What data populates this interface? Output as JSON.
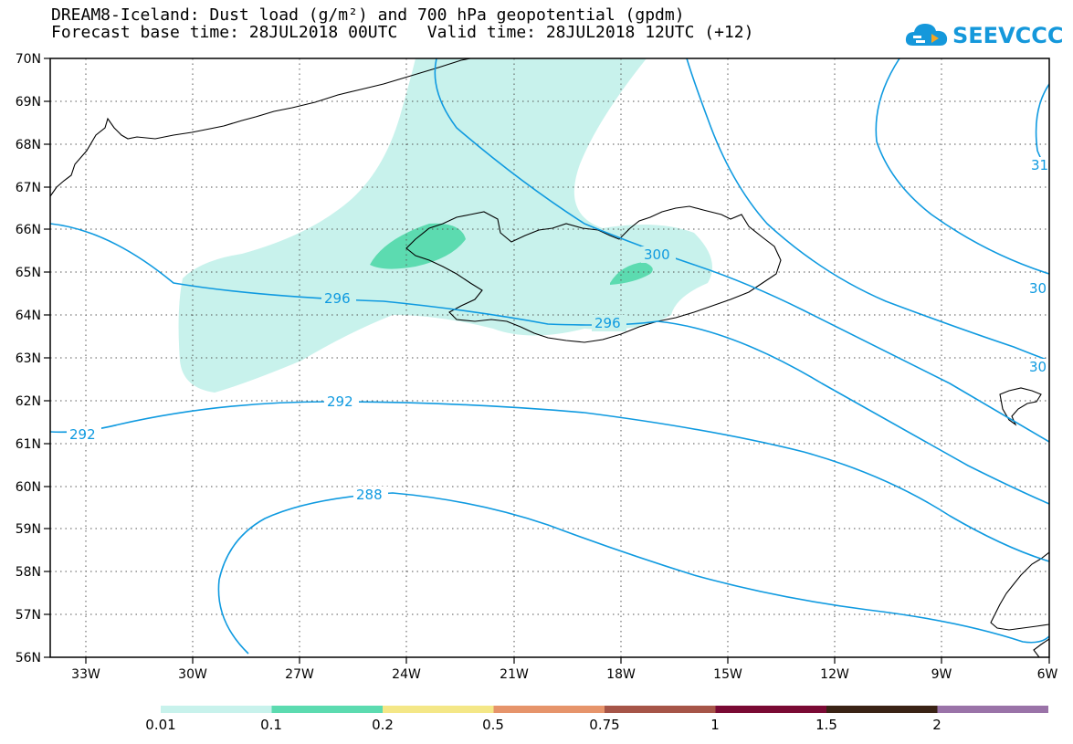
{
  "header": {
    "title_line1": "DREAM8-Iceland: Dust load (g/m²) and 700 hPa geopotential (gpdm)",
    "title_line2": "Forecast base time: 28JUL2018 00UTC   Valid time: 28JUL2018 12UTC (+12)"
  },
  "logo": {
    "text": "SEEVCCC",
    "icon": "cloud-icon",
    "color": "#1598db"
  },
  "map": {
    "lat_labels": [
      "70N",
      "69N",
      "68N",
      "67N",
      "66N",
      "65N",
      "64N",
      "63N",
      "62N",
      "61N",
      "60N",
      "59N",
      "58N",
      "57N",
      "56N"
    ],
    "lon_labels": [
      "33W",
      "30W",
      "27W",
      "24W",
      "21W",
      "18W",
      "15W",
      "12W",
      "9W",
      "6W"
    ],
    "lat_range": [
      56,
      70
    ],
    "lon_range": [
      -34,
      -6
    ],
    "grid": "dotted",
    "contour_color": "#0f9ae0",
    "contour_labels": [
      "296",
      "296",
      "300",
      "292",
      "292",
      "288",
      "30",
      "30",
      "31"
    ],
    "dust_colors": {
      "low": "#c8f2ec",
      "mid": "#5cdbb0"
    }
  },
  "colorbar": {
    "labels": [
      "0.01",
      "0.1",
      "0.2",
      "0.5",
      "0.75",
      "1",
      "1.5",
      "2"
    ],
    "colors": [
      "#c8f2ec",
      "#5cdbb0",
      "#f4e787",
      "#e6946b",
      "#a65548",
      "#7a0a34",
      "#3a2315",
      "#9a73a8"
    ]
  }
}
